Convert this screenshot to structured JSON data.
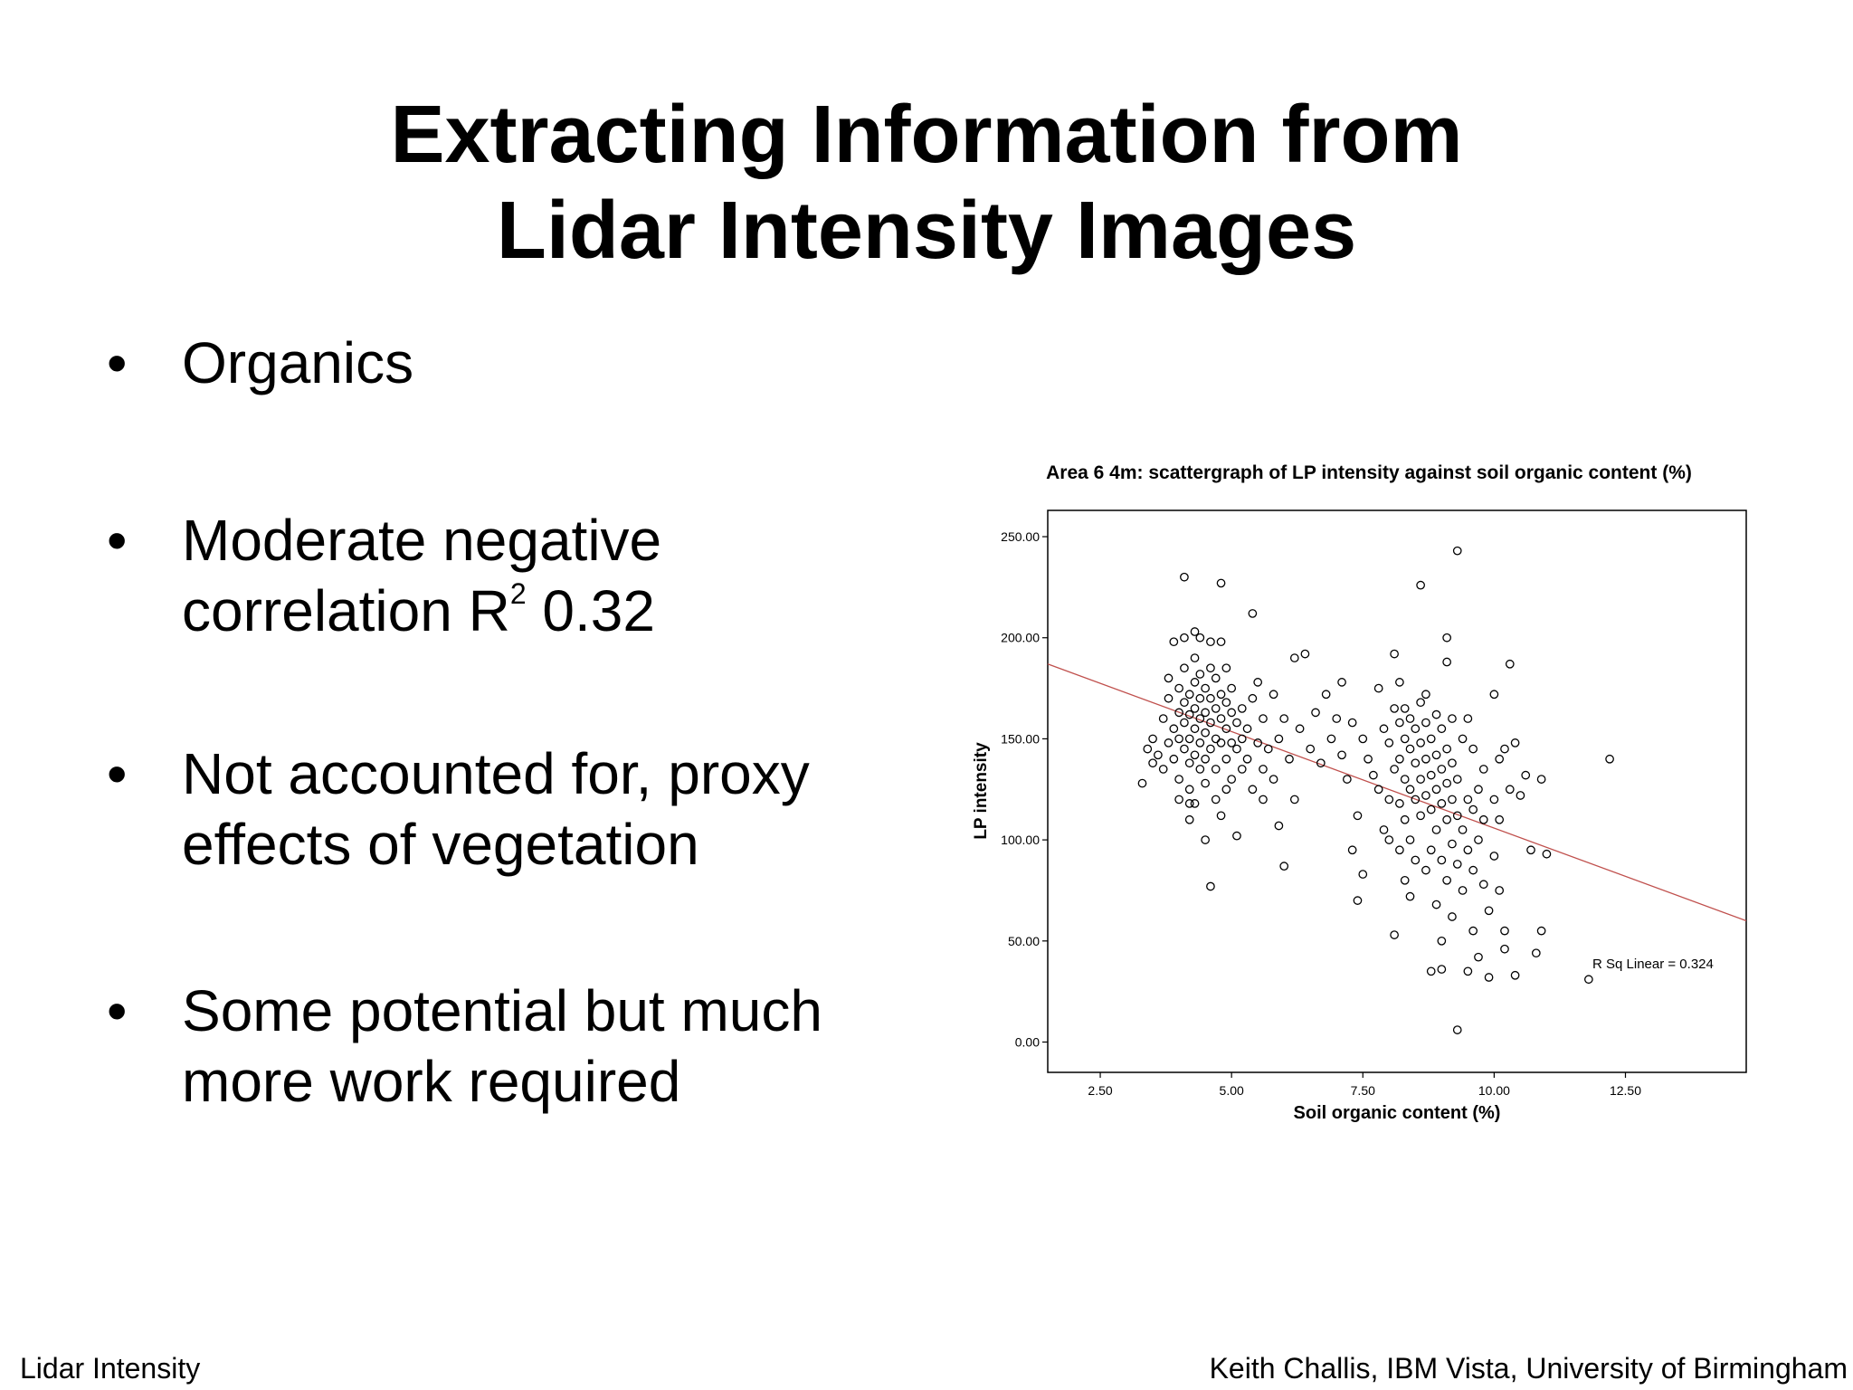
{
  "slide": {
    "title_line1": "Extracting Information from",
    "title_line2": "Lidar Intensity Images",
    "bullets": [
      {
        "symbol": "•",
        "lines": [
          "Organics"
        ]
      },
      {
        "symbol": "•",
        "line1_main": "Moderate negative",
        "line2_before": "correlation R",
        "line2_sup": "2",
        "line2_after": " 0.32"
      },
      {
        "symbol": "•",
        "lines": [
          "Not accounted for, proxy",
          "effects of vegetation"
        ]
      },
      {
        "symbol": "•",
        "lines": [
          "Some potential but much",
          "more work required"
        ]
      }
    ],
    "footer_left": "Lidar Intensity",
    "footer_right": "Keith Challis, IBM Vista, University of Birmingham"
  },
  "chart_data": {
    "type": "scatter",
    "title": "Area 6 4m: scattergraph of LP intensity against soil organic content (%)",
    "xlabel": "Soil organic content (%)",
    "ylabel": "LP intensity",
    "xlim": [
      1.5,
      14.8
    ],
    "ylim": [
      -15,
      263
    ],
    "xticks": [
      2.5,
      5.0,
      7.5,
      10.0,
      12.5
    ],
    "xtick_labels": [
      "2.50",
      "5.00",
      "7.50",
      "10.00",
      "12.50"
    ],
    "yticks": [
      0,
      50,
      100,
      150,
      200,
      250
    ],
    "ytick_labels": [
      "0.00",
      "50.00",
      "100.00",
      "150.00",
      "200.00",
      "250.00"
    ],
    "grid": false,
    "fit_line": {
      "label": "R Sq Linear = 0.324",
      "x": [
        1.5,
        14.8
      ],
      "y": [
        187,
        60
      ],
      "color": "#c0504d"
    },
    "marker": "open-circle",
    "points": [
      [
        3.3,
        128
      ],
      [
        3.4,
        145
      ],
      [
        3.5,
        138
      ],
      [
        3.5,
        150
      ],
      [
        3.6,
        142
      ],
      [
        3.7,
        160
      ],
      [
        3.7,
        135
      ],
      [
        3.8,
        148
      ],
      [
        3.8,
        180
      ],
      [
        3.8,
        170
      ],
      [
        3.9,
        198
      ],
      [
        3.9,
        155
      ],
      [
        3.9,
        140
      ],
      [
        4.0,
        163
      ],
      [
        4.0,
        150
      ],
      [
        4.0,
        130
      ],
      [
        4.0,
        175
      ],
      [
        4.0,
        120
      ],
      [
        4.1,
        185
      ],
      [
        4.1,
        168
      ],
      [
        4.1,
        158
      ],
      [
        4.1,
        145
      ],
      [
        4.1,
        200
      ],
      [
        4.1,
        230
      ],
      [
        4.2,
        172
      ],
      [
        4.2,
        162
      ],
      [
        4.2,
        150
      ],
      [
        4.2,
        138
      ],
      [
        4.2,
        125
      ],
      [
        4.2,
        110
      ],
      [
        4.2,
        118
      ],
      [
        4.3,
        190
      ],
      [
        4.3,
        178
      ],
      [
        4.3,
        165
      ],
      [
        4.3,
        155
      ],
      [
        4.3,
        142
      ],
      [
        4.3,
        203
      ],
      [
        4.3,
        118
      ],
      [
        4.4,
        182
      ],
      [
        4.4,
        170
      ],
      [
        4.4,
        160
      ],
      [
        4.4,
        148
      ],
      [
        4.4,
        135
      ],
      [
        4.4,
        200
      ],
      [
        4.5,
        175
      ],
      [
        4.5,
        163
      ],
      [
        4.5,
        153
      ],
      [
        4.5,
        140
      ],
      [
        4.5,
        128
      ],
      [
        4.5,
        100
      ],
      [
        4.6,
        198
      ],
      [
        4.6,
        185
      ],
      [
        4.6,
        170
      ],
      [
        4.6,
        158
      ],
      [
        4.6,
        145
      ],
      [
        4.6,
        77
      ],
      [
        4.7,
        180
      ],
      [
        4.7,
        165
      ],
      [
        4.7,
        150
      ],
      [
        4.7,
        135
      ],
      [
        4.7,
        120
      ],
      [
        4.8,
        198
      ],
      [
        4.8,
        172
      ],
      [
        4.8,
        160
      ],
      [
        4.8,
        148
      ],
      [
        4.8,
        227
      ],
      [
        4.8,
        112
      ],
      [
        4.9,
        185
      ],
      [
        4.9,
        168
      ],
      [
        4.9,
        155
      ],
      [
        4.9,
        140
      ],
      [
        4.9,
        125
      ],
      [
        5.0,
        175
      ],
      [
        5.0,
        163
      ],
      [
        5.0,
        148
      ],
      [
        5.0,
        130
      ],
      [
        5.1,
        158
      ],
      [
        5.1,
        145
      ],
      [
        5.1,
        102
      ],
      [
        5.2,
        165
      ],
      [
        5.2,
        150
      ],
      [
        5.2,
        135
      ],
      [
        5.3,
        155
      ],
      [
        5.3,
        140
      ],
      [
        5.4,
        212
      ],
      [
        5.4,
        170
      ],
      [
        5.4,
        125
      ],
      [
        5.5,
        148
      ],
      [
        5.5,
        178
      ],
      [
        5.6,
        160
      ],
      [
        5.6,
        135
      ],
      [
        5.6,
        120
      ],
      [
        5.7,
        145
      ],
      [
        5.8,
        172
      ],
      [
        5.8,
        130
      ],
      [
        5.9,
        107
      ],
      [
        5.9,
        150
      ],
      [
        6.0,
        87
      ],
      [
        6.0,
        160
      ],
      [
        6.1,
        140
      ],
      [
        6.2,
        190
      ],
      [
        6.2,
        120
      ],
      [
        6.3,
        155
      ],
      [
        6.4,
        192
      ],
      [
        6.5,
        145
      ],
      [
        6.6,
        163
      ],
      [
        6.7,
        138
      ],
      [
        6.8,
        172
      ],
      [
        6.9,
        150
      ],
      [
        7.0,
        160
      ],
      [
        7.1,
        178
      ],
      [
        7.1,
        142
      ],
      [
        7.2,
        130
      ],
      [
        7.3,
        158
      ],
      [
        7.3,
        95
      ],
      [
        7.4,
        112
      ],
      [
        7.4,
        70
      ],
      [
        7.5,
        150
      ],
      [
        7.5,
        83
      ],
      [
        7.6,
        140
      ],
      [
        7.7,
        132
      ],
      [
        7.8,
        175
      ],
      [
        7.8,
        125
      ],
      [
        7.9,
        155
      ],
      [
        7.9,
        105
      ],
      [
        8.0,
        148
      ],
      [
        8.0,
        120
      ],
      [
        8.0,
        100
      ],
      [
        8.1,
        192
      ],
      [
        8.1,
        165
      ],
      [
        8.1,
        135
      ],
      [
        8.1,
        53
      ],
      [
        8.2,
        178
      ],
      [
        8.2,
        158
      ],
      [
        8.2,
        140
      ],
      [
        8.2,
        118
      ],
      [
        8.2,
        95
      ],
      [
        8.3,
        165
      ],
      [
        8.3,
        150
      ],
      [
        8.3,
        130
      ],
      [
        8.3,
        110
      ],
      [
        8.3,
        80
      ],
      [
        8.4,
        160
      ],
      [
        8.4,
        145
      ],
      [
        8.4,
        125
      ],
      [
        8.4,
        100
      ],
      [
        8.4,
        72
      ],
      [
        8.5,
        155
      ],
      [
        8.5,
        138
      ],
      [
        8.5,
        120
      ],
      [
        8.5,
        90
      ],
      [
        8.6,
        168
      ],
      [
        8.6,
        148
      ],
      [
        8.6,
        130
      ],
      [
        8.6,
        112
      ],
      [
        8.6,
        226
      ],
      [
        8.7,
        172
      ],
      [
        8.7,
        158
      ],
      [
        8.7,
        140
      ],
      [
        8.7,
        122
      ],
      [
        8.7,
        85
      ],
      [
        8.8,
        150
      ],
      [
        8.8,
        132
      ],
      [
        8.8,
        115
      ],
      [
        8.8,
        95
      ],
      [
        8.8,
        35
      ],
      [
        8.9,
        162
      ],
      [
        8.9,
        142
      ],
      [
        8.9,
        125
      ],
      [
        8.9,
        105
      ],
      [
        8.9,
        68
      ],
      [
        9.0,
        155
      ],
      [
        9.0,
        135
      ],
      [
        9.0,
        118
      ],
      [
        9.0,
        90
      ],
      [
        9.0,
        50
      ],
      [
        9.0,
        36
      ],
      [
        9.1,
        200
      ],
      [
        9.1,
        188
      ],
      [
        9.1,
        145
      ],
      [
        9.1,
        128
      ],
      [
        9.1,
        110
      ],
      [
        9.1,
        80
      ],
      [
        9.2,
        160
      ],
      [
        9.2,
        138
      ],
      [
        9.2,
        120
      ],
      [
        9.2,
        98
      ],
      [
        9.2,
        62
      ],
      [
        9.3,
        243
      ],
      [
        9.3,
        130
      ],
      [
        9.3,
        112
      ],
      [
        9.3,
        88
      ],
      [
        9.3,
        6
      ],
      [
        9.4,
        150
      ],
      [
        9.4,
        105
      ],
      [
        9.4,
        75
      ],
      [
        9.5,
        160
      ],
      [
        9.5,
        120
      ],
      [
        9.5,
        95
      ],
      [
        9.5,
        35
      ],
      [
        9.6,
        145
      ],
      [
        9.6,
        115
      ],
      [
        9.6,
        85
      ],
      [
        9.6,
        55
      ],
      [
        9.7,
        125
      ],
      [
        9.7,
        100
      ],
      [
        9.7,
        42
      ],
      [
        9.8,
        135
      ],
      [
        9.8,
        110
      ],
      [
        9.8,
        78
      ],
      [
        9.9,
        65
      ],
      [
        9.9,
        32
      ],
      [
        10.0,
        172
      ],
      [
        10.0,
        120
      ],
      [
        10.0,
        92
      ],
      [
        10.1,
        140
      ],
      [
        10.1,
        110
      ],
      [
        10.1,
        75
      ],
      [
        10.2,
        145
      ],
      [
        10.2,
        55
      ],
      [
        10.2,
        46
      ],
      [
        10.3,
        125
      ],
      [
        10.3,
        187
      ],
      [
        10.4,
        148
      ],
      [
        10.4,
        33
      ],
      [
        10.5,
        122
      ],
      [
        10.6,
        132
      ],
      [
        10.7,
        95
      ],
      [
        10.8,
        44
      ],
      [
        10.9,
        130
      ],
      [
        11.0,
        93
      ],
      [
        10.9,
        55
      ],
      [
        11.8,
        31
      ],
      [
        12.2,
        140
      ]
    ]
  }
}
